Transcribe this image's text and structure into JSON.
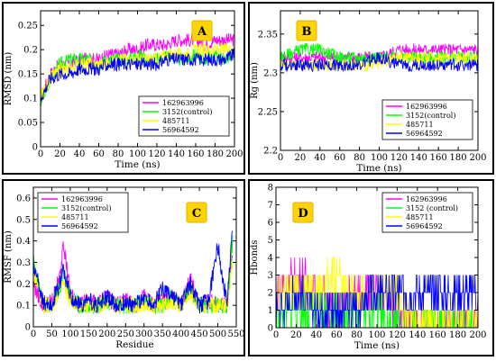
{
  "chart_data": [
    {
      "panel_label": "A",
      "type": "line",
      "xlabel": "Time (ns)",
      "ylabel": "RMSD (nm)",
      "xlim": [
        0,
        200
      ],
      "ylim": [
        0,
        0.28
      ],
      "xticks": [
        "0",
        "20",
        "40",
        "60",
        "80",
        "100",
        "120",
        "140",
        "160",
        "180",
        "200"
      ],
      "xtick_values": [
        0,
        20,
        40,
        60,
        80,
        100,
        120,
        140,
        160,
        180,
        200
      ],
      "yticks": [
        "0",
        "0.05",
        "0.1",
        "0.15",
        "0.2",
        "0.25"
      ],
      "ytick_values": [
        0,
        0.05,
        0.1,
        0.15,
        0.2,
        0.25
      ],
      "legend_position": "lower-right",
      "series": [
        {
          "name": "162963996",
          "color": "#ff00ff",
          "x": [
            0,
            10,
            20,
            30,
            40,
            50,
            60,
            70,
            80,
            90,
            100,
            110,
            120,
            130,
            140,
            150,
            160,
            170,
            180,
            190,
            200
          ],
          "values": [
            0.1,
            0.15,
            0.17,
            0.17,
            0.18,
            0.18,
            0.18,
            0.19,
            0.19,
            0.2,
            0.2,
            0.21,
            0.21,
            0.21,
            0.22,
            0.22,
            0.22,
            0.21,
            0.22,
            0.22,
            0.22
          ]
        },
        {
          "name": "3152(control)",
          "color": "#00ff00",
          "x": [
            0,
            10,
            20,
            30,
            40,
            50,
            60,
            70,
            80,
            90,
            100,
            110,
            120,
            130,
            140,
            150,
            160,
            170,
            180,
            190,
            200
          ],
          "values": [
            0.09,
            0.14,
            0.17,
            0.18,
            0.18,
            0.18,
            0.17,
            0.18,
            0.18,
            0.18,
            0.19,
            0.18,
            0.18,
            0.19,
            0.18,
            0.18,
            0.19,
            0.18,
            0.19,
            0.18,
            0.19
          ]
        },
        {
          "name": "485711",
          "color": "#ffff00",
          "x": [
            0,
            10,
            20,
            30,
            40,
            50,
            60,
            70,
            80,
            90,
            100,
            110,
            120,
            130,
            140,
            150,
            160,
            170,
            180,
            190,
            200
          ],
          "values": [
            0.1,
            0.14,
            0.16,
            0.16,
            0.17,
            0.17,
            0.17,
            0.17,
            0.18,
            0.18,
            0.18,
            0.18,
            0.18,
            0.19,
            0.19,
            0.19,
            0.2,
            0.2,
            0.2,
            0.2,
            0.2
          ]
        },
        {
          "name": "56964592",
          "color": "#0000ff",
          "x": [
            0,
            10,
            20,
            30,
            40,
            50,
            60,
            70,
            80,
            90,
            100,
            110,
            120,
            130,
            140,
            150,
            160,
            170,
            180,
            190,
            200
          ],
          "values": [
            0.1,
            0.14,
            0.15,
            0.15,
            0.16,
            0.16,
            0.16,
            0.17,
            0.17,
            0.17,
            0.17,
            0.17,
            0.17,
            0.18,
            0.18,
            0.18,
            0.18,
            0.18,
            0.18,
            0.18,
            0.19
          ]
        }
      ]
    },
    {
      "panel_label": "B",
      "type": "line",
      "xlabel": "Time (ns)",
      "ylabel": "Rg (nm)",
      "xlim": [
        0,
        200
      ],
      "ylim": [
        2.2,
        2.38
      ],
      "xticks": [
        "0",
        "20",
        "40",
        "60",
        "80",
        "100",
        "120",
        "140",
        "160",
        "180",
        "200"
      ],
      "xtick_values": [
        0,
        20,
        40,
        60,
        80,
        100,
        120,
        140,
        160,
        180,
        200
      ],
      "yticks": [
        "2.2",
        "2.25",
        "2.3",
        "2.35"
      ],
      "ytick_values": [
        2.2,
        2.25,
        2.3,
        2.35
      ],
      "legend_position": "lower-right",
      "series": [
        {
          "name": "162963996",
          "color": "#ff00ff",
          "x": [
            0,
            20,
            40,
            60,
            80,
            100,
            120,
            140,
            160,
            180,
            200
          ],
          "values": [
            2.32,
            2.32,
            2.32,
            2.32,
            2.32,
            2.32,
            2.33,
            2.33,
            2.33,
            2.33,
            2.33
          ]
        },
        {
          "name": "3152(control)",
          "color": "#00ff00",
          "x": [
            0,
            20,
            40,
            60,
            80,
            100,
            120,
            140,
            160,
            180,
            200
          ],
          "values": [
            2.32,
            2.33,
            2.33,
            2.32,
            2.32,
            2.32,
            2.32,
            2.32,
            2.32,
            2.32,
            2.32
          ]
        },
        {
          "name": "485711",
          "color": "#ffff00",
          "x": [
            0,
            20,
            40,
            60,
            80,
            100,
            120,
            140,
            160,
            180,
            200
          ],
          "values": [
            2.31,
            2.31,
            2.31,
            2.31,
            2.31,
            2.31,
            2.32,
            2.32,
            2.32,
            2.32,
            2.32
          ]
        },
        {
          "name": "56964592",
          "color": "#0000ff",
          "x": [
            0,
            20,
            40,
            60,
            80,
            100,
            120,
            140,
            160,
            180,
            200
          ],
          "values": [
            2.31,
            2.31,
            2.31,
            2.31,
            2.31,
            2.32,
            2.31,
            2.31,
            2.31,
            2.31,
            2.31
          ]
        }
      ]
    },
    {
      "panel_label": "C",
      "type": "line",
      "xlabel": "Residue",
      "ylabel": "RMSF (nm)",
      "xlim": [
        0,
        550
      ],
      "ylim": [
        0,
        0.65
      ],
      "xticks": [
        "0",
        "50",
        "100",
        "150",
        "200",
        "250",
        "300",
        "350",
        "400",
        "450",
        "500",
        "550"
      ],
      "xtick_values": [
        0,
        50,
        100,
        150,
        200,
        250,
        300,
        350,
        400,
        450,
        500,
        550
      ],
      "yticks": [
        "0",
        "0.1",
        "0.2",
        "0.3",
        "0.4",
        "0.5",
        "0.6"
      ],
      "ytick_values": [
        0,
        0.1,
        0.2,
        0.3,
        0.4,
        0.5,
        0.6
      ],
      "legend_position": "top-left",
      "series": [
        {
          "name": "162963996",
          "color": "#ff00ff",
          "x": [
            0,
            25,
            50,
            75,
            80,
            100,
            125,
            150,
            175,
            200,
            225,
            250,
            275,
            300,
            325,
            350,
            375,
            400,
            425,
            450,
            475,
            500,
            525,
            540
          ],
          "values": [
            0.2,
            0.1,
            0.12,
            0.25,
            0.42,
            0.15,
            0.1,
            0.12,
            0.1,
            0.14,
            0.1,
            0.12,
            0.1,
            0.14,
            0.1,
            0.12,
            0.15,
            0.1,
            0.22,
            0.1,
            0.12,
            0.1,
            0.1,
            0.35
          ]
        },
        {
          "name": "3152(control)",
          "color": "#00ff00",
          "x": [
            0,
            25,
            50,
            75,
            80,
            100,
            125,
            150,
            175,
            200,
            225,
            250,
            275,
            300,
            325,
            350,
            375,
            400,
            425,
            450,
            475,
            500,
            525,
            540
          ],
          "values": [
            0.3,
            0.12,
            0.1,
            0.2,
            0.25,
            0.14,
            0.1,
            0.1,
            0.1,
            0.12,
            0.1,
            0.1,
            0.1,
            0.12,
            0.1,
            0.1,
            0.14,
            0.1,
            0.18,
            0.1,
            0.1,
            0.1,
            0.1,
            0.4
          ]
        },
        {
          "name": "485711",
          "color": "#ffff00",
          "x": [
            0,
            25,
            50,
            75,
            80,
            100,
            125,
            150,
            175,
            200,
            225,
            250,
            275,
            300,
            325,
            350,
            375,
            400,
            425,
            450,
            475,
            500,
            525,
            540
          ],
          "values": [
            0.25,
            0.1,
            0.1,
            0.18,
            0.2,
            0.12,
            0.1,
            0.1,
            0.1,
            0.12,
            0.1,
            0.1,
            0.1,
            0.1,
            0.1,
            0.1,
            0.12,
            0.1,
            0.15,
            0.1,
            0.1,
            0.1,
            0.1,
            0.3
          ]
        },
        {
          "name": "56964592",
          "color": "#0000ff",
          "x": [
            0,
            25,
            50,
            75,
            80,
            100,
            125,
            150,
            175,
            200,
            225,
            250,
            275,
            300,
            325,
            350,
            375,
            400,
            425,
            450,
            475,
            500,
            525,
            540
          ],
          "values": [
            0.3,
            0.12,
            0.1,
            0.22,
            0.28,
            0.14,
            0.1,
            0.12,
            0.1,
            0.14,
            0.1,
            0.12,
            0.1,
            0.14,
            0.1,
            0.18,
            0.14,
            0.1,
            0.2,
            0.1,
            0.12,
            0.38,
            0.1,
            0.45
          ]
        }
      ]
    },
    {
      "panel_label": "D",
      "type": "line",
      "xlabel": "Time (ns)",
      "ylabel": "Hbonds",
      "xlim": [
        0,
        200
      ],
      "ylim": [
        0,
        8
      ],
      "xticks": [
        "0",
        "20",
        "40",
        "60",
        "80",
        "100",
        "120",
        "140",
        "160",
        "180",
        "200"
      ],
      "xtick_values": [
        0,
        20,
        40,
        60,
        80,
        100,
        120,
        140,
        160,
        180,
        200
      ],
      "yticks": [
        "0",
        "1",
        "2",
        "3",
        "4",
        "5",
        "6",
        "7",
        "8"
      ],
      "ytick_values": [
        0,
        1,
        2,
        3,
        4,
        5,
        6,
        7,
        8
      ],
      "legend_position": "top-right",
      "series": [
        {
          "name": "162963996",
          "color": "#ff00ff",
          "x": [
            0,
            20,
            40,
            60,
            80,
            100,
            120,
            140,
            160,
            180,
            200
          ],
          "values": [
            2,
            3,
            2,
            1,
            2,
            2,
            1,
            0,
            0,
            0,
            0
          ]
        },
        {
          "name": "3152 (control)",
          "color": "#00ff00",
          "x": [
            0,
            20,
            40,
            60,
            80,
            100,
            120,
            140,
            160,
            180,
            200
          ],
          "values": [
            1,
            1,
            1,
            1,
            1,
            1,
            0,
            0,
            0,
            0,
            0
          ]
        },
        {
          "name": "485711",
          "color": "#ffff00",
          "x": [
            0,
            20,
            40,
            60,
            80,
            100,
            120,
            140,
            160,
            180,
            200
          ],
          "values": [
            2,
            2,
            2,
            3,
            2,
            2,
            2,
            0,
            0,
            0,
            0
          ]
        },
        {
          "name": "56964592",
          "color": "#0000ff",
          "x": [
            0,
            20,
            40,
            60,
            80,
            100,
            120,
            140,
            160,
            180,
            200
          ],
          "values": [
            1,
            2,
            1,
            1,
            1,
            2,
            2,
            2,
            2,
            2,
            2
          ]
        }
      ]
    }
  ]
}
